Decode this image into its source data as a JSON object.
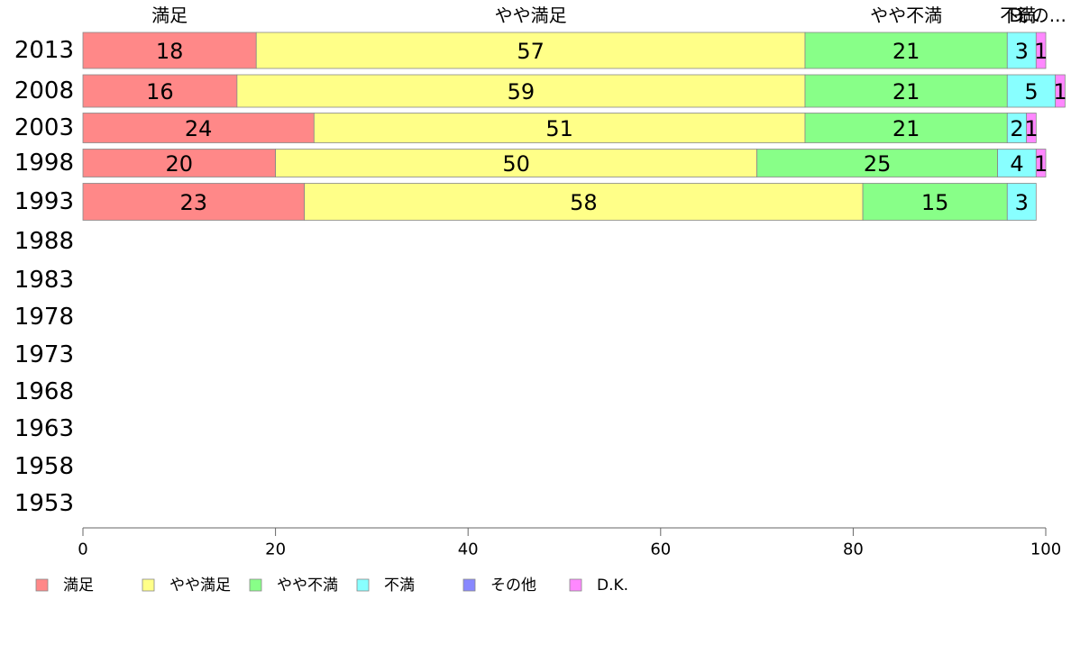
{
  "chart_data": {
    "type": "bar",
    "orientation": "horizontal",
    "stacked": true,
    "categories": [
      "2013",
      "2008",
      "2003",
      "1998",
      "1993",
      "1988",
      "1983",
      "1978",
      "1973",
      "1968",
      "1963",
      "1958",
      "1953"
    ],
    "series": [
      {
        "name": "満足",
        "color": "#ff8888",
        "values": [
          18,
          16,
          24,
          20,
          23,
          null,
          null,
          null,
          null,
          null,
          null,
          null,
          null
        ]
      },
      {
        "name": "やや満足",
        "color": "#ffff88",
        "values": [
          57,
          59,
          51,
          50,
          58,
          null,
          null,
          null,
          null,
          null,
          null,
          null,
          null
        ]
      },
      {
        "name": "やや不満",
        "color": "#88ff88",
        "values": [
          21,
          21,
          21,
          25,
          15,
          null,
          null,
          null,
          null,
          null,
          null,
          null,
          null
        ]
      },
      {
        "name": "不満",
        "color": "#88ffff",
        "values": [
          3,
          5,
          2,
          4,
          3,
          null,
          null,
          null,
          null,
          null,
          null,
          null,
          null
        ]
      },
      {
        "name": "その他",
        "color": "#8888ff",
        "values": [
          0,
          0,
          0,
          0,
          0,
          null,
          null,
          null,
          null,
          null,
          null,
          null,
          null
        ]
      },
      {
        "name": "D.K.",
        "color": "#ff88ff",
        "values": [
          1,
          1,
          1,
          1,
          0,
          null,
          null,
          null,
          null,
          null,
          null,
          null,
          null
        ]
      }
    ],
    "top_labels": [
      "満足",
      "やや満足",
      "やや不満",
      "不満",
      "その他",
      "D.K."
    ],
    "top_labels_display": [
      "満足",
      "やや満足",
      "やや不満",
      "不満",
      "その...",
      "D..."
    ],
    "xlim": [
      0,
      100
    ],
    "xticks": [
      "0",
      "20",
      "40",
      "60",
      "80",
      "100"
    ],
    "grid": false,
    "legend_position": "bottom"
  }
}
